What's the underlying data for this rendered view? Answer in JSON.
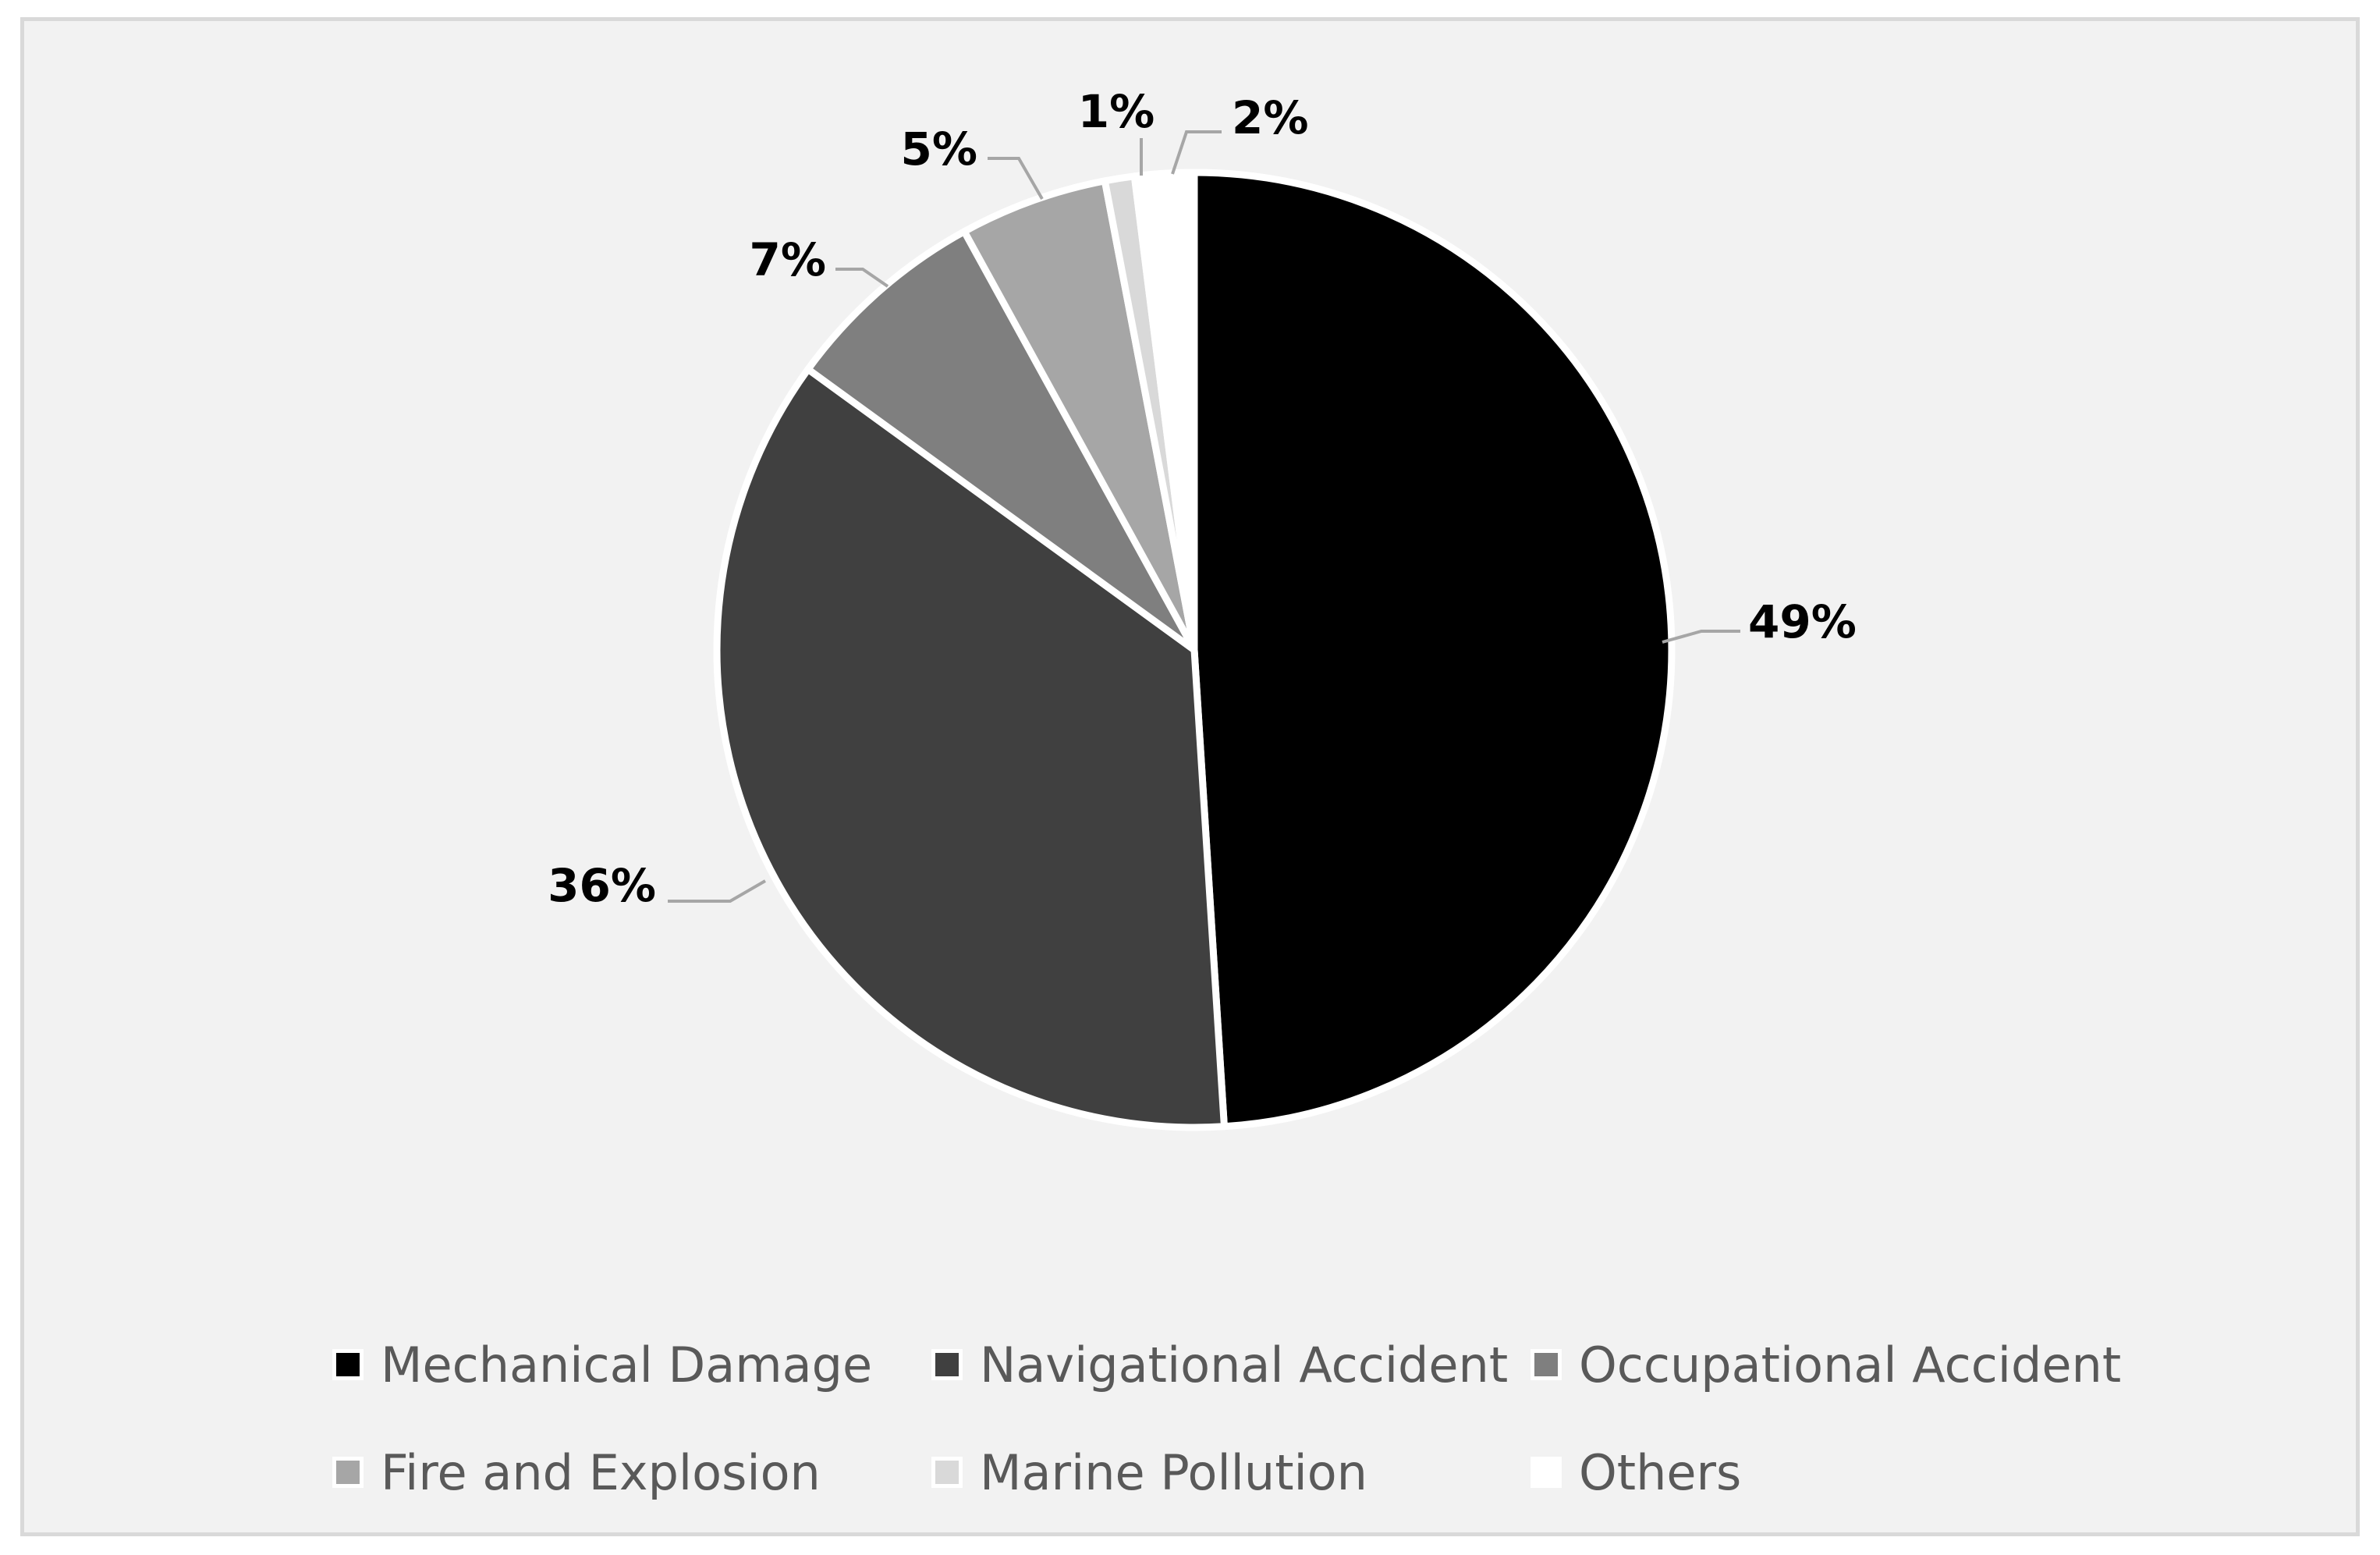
{
  "chart_data": {
    "type": "pie",
    "title": "",
    "categories": [
      "Mechanical Damage",
      "Navigational Accident",
      "Occupational Accident",
      "Fire and Explosion",
      "Marine Pollution",
      "Others"
    ],
    "values": [
      49,
      36,
      7,
      5,
      1,
      2
    ],
    "data_labels": [
      "49%",
      "36%",
      "7%",
      "5%",
      "1%",
      "2%"
    ],
    "colors": [
      "#000000",
      "#404040",
      "#7f7f7f",
      "#a6a6a6",
      "#d9d9d9",
      "#ffffff"
    ],
    "start_angle": "12 o'clock",
    "direction": "clockwise",
    "legend_position": "bottom"
  }
}
